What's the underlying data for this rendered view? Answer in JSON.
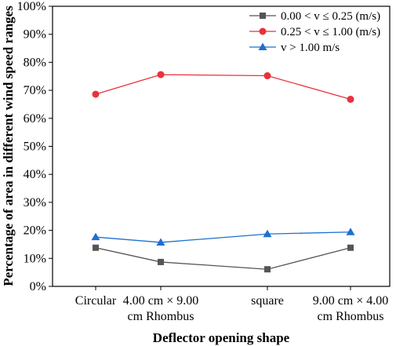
{
  "chart_data": {
    "type": "line",
    "categories": [
      [
        "Circular"
      ],
      [
        "4.00 cm × 9.00",
        "cm Rhombus"
      ],
      [
        "square"
      ],
      [
        "9.00 cm × 4.00",
        "cm Rhombus"
      ]
    ],
    "xlabel": "Deflector opening shape",
    "ylabel": "Percentage of area in different wind speed ranges",
    "ylim": [
      0,
      100
    ],
    "yticks": [
      0,
      10,
      20,
      30,
      40,
      50,
      60,
      70,
      80,
      90,
      100
    ],
    "ytick_suffix": "%",
    "legend_position": "top-right",
    "series": [
      {
        "name": "0.00 < v ≤ 0.25 (m/s)",
        "color": "#555555",
        "marker": "square",
        "values": [
          13.8,
          8.7,
          6.1,
          13.8
        ]
      },
      {
        "name": "0.25 < v ≤ 1.00 (m/s)",
        "color": "#e8323c",
        "marker": "circle",
        "values": [
          68.6,
          75.6,
          75.2,
          66.8
        ]
      },
      {
        "name": "v > 1.00 m/s",
        "color": "#1f6fd1",
        "marker": "triangle",
        "values": [
          17.6,
          15.7,
          18.7,
          19.4
        ]
      }
    ]
  }
}
